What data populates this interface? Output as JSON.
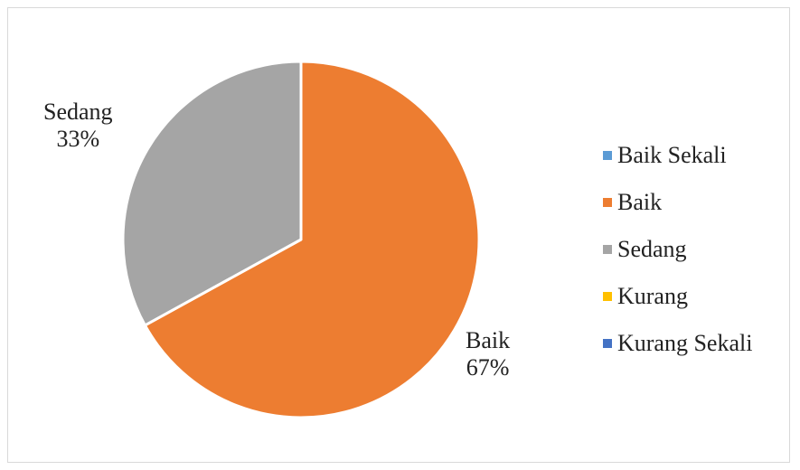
{
  "chart_data": {
    "type": "pie",
    "categories": [
      "Baik Sekali",
      "Baik",
      "Sedang",
      "Kurang",
      "Kurang Sekali"
    ],
    "values": [
      0,
      67,
      33,
      0,
      0
    ],
    "unit": "%",
    "colors": [
      "#5B9BD5",
      "#ED7D31",
      "#A5A5A5",
      "#FFC000",
      "#4472C4"
    ],
    "title": "",
    "legend_position": "right",
    "data_labels": [
      {
        "category": "Sedang",
        "percent": "33%"
      },
      {
        "category": "Baik",
        "percent": "67%"
      }
    ],
    "start_angle": "top",
    "direction": "clockwise"
  }
}
